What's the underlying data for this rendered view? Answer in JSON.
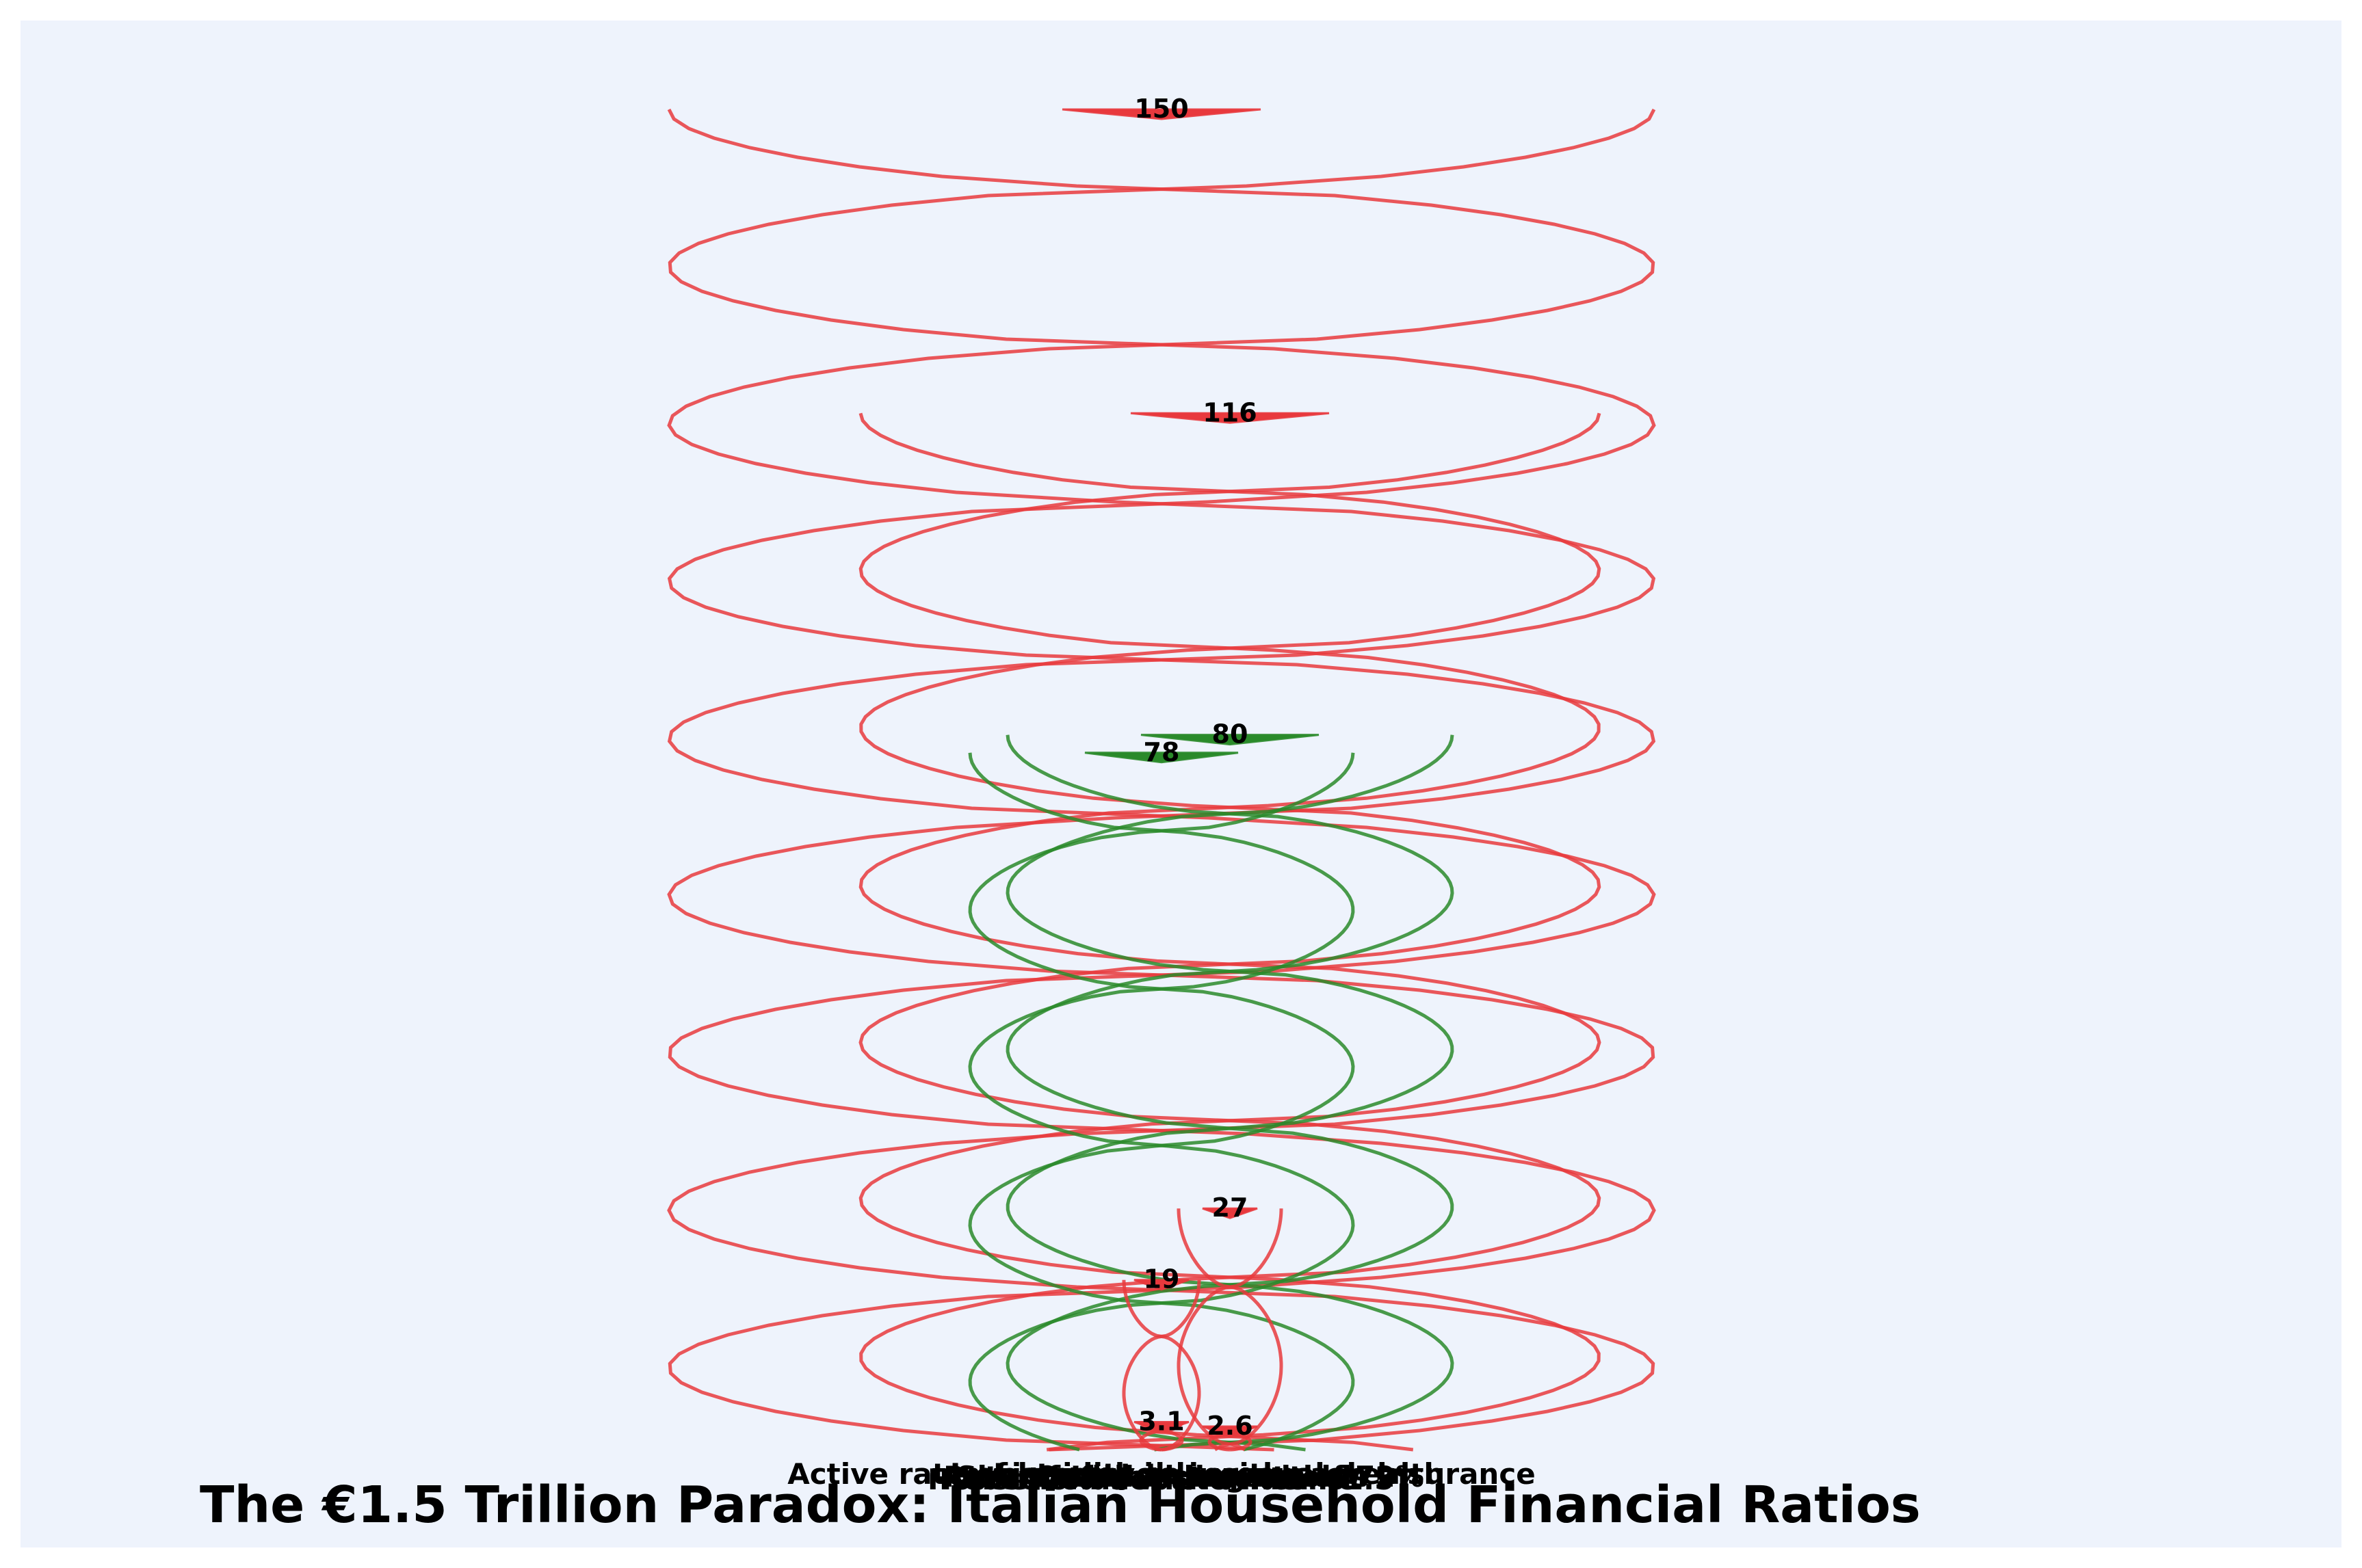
{
  "chart_data": {
    "type": "line",
    "title": "The €1.5 Trillion Paradox: Italian Household Financial Ratios",
    "categories": [
      "Active rate of households with cash insurance",
      "Cash-holding ratio",
      "Household debt-to-income",
      "Investment in personal wealth",
      "Rate of Italian households",
      "Households with under €1.5T",
      "Liquidity to income",
      "Share of investments of 72%"
    ],
    "values": [
      150,
      116,
      80,
      78,
      27,
      19,
      3.1,
      2.6
    ],
    "colors": [
      "red",
      "red",
      "green",
      "green",
      "red",
      "red",
      "red",
      "red"
    ],
    "palette": {
      "red": "#e8393d",
      "green": "#2a8a2a",
      "background": "#eef3fc"
    },
    "ylim": [
      0,
      150
    ]
  }
}
